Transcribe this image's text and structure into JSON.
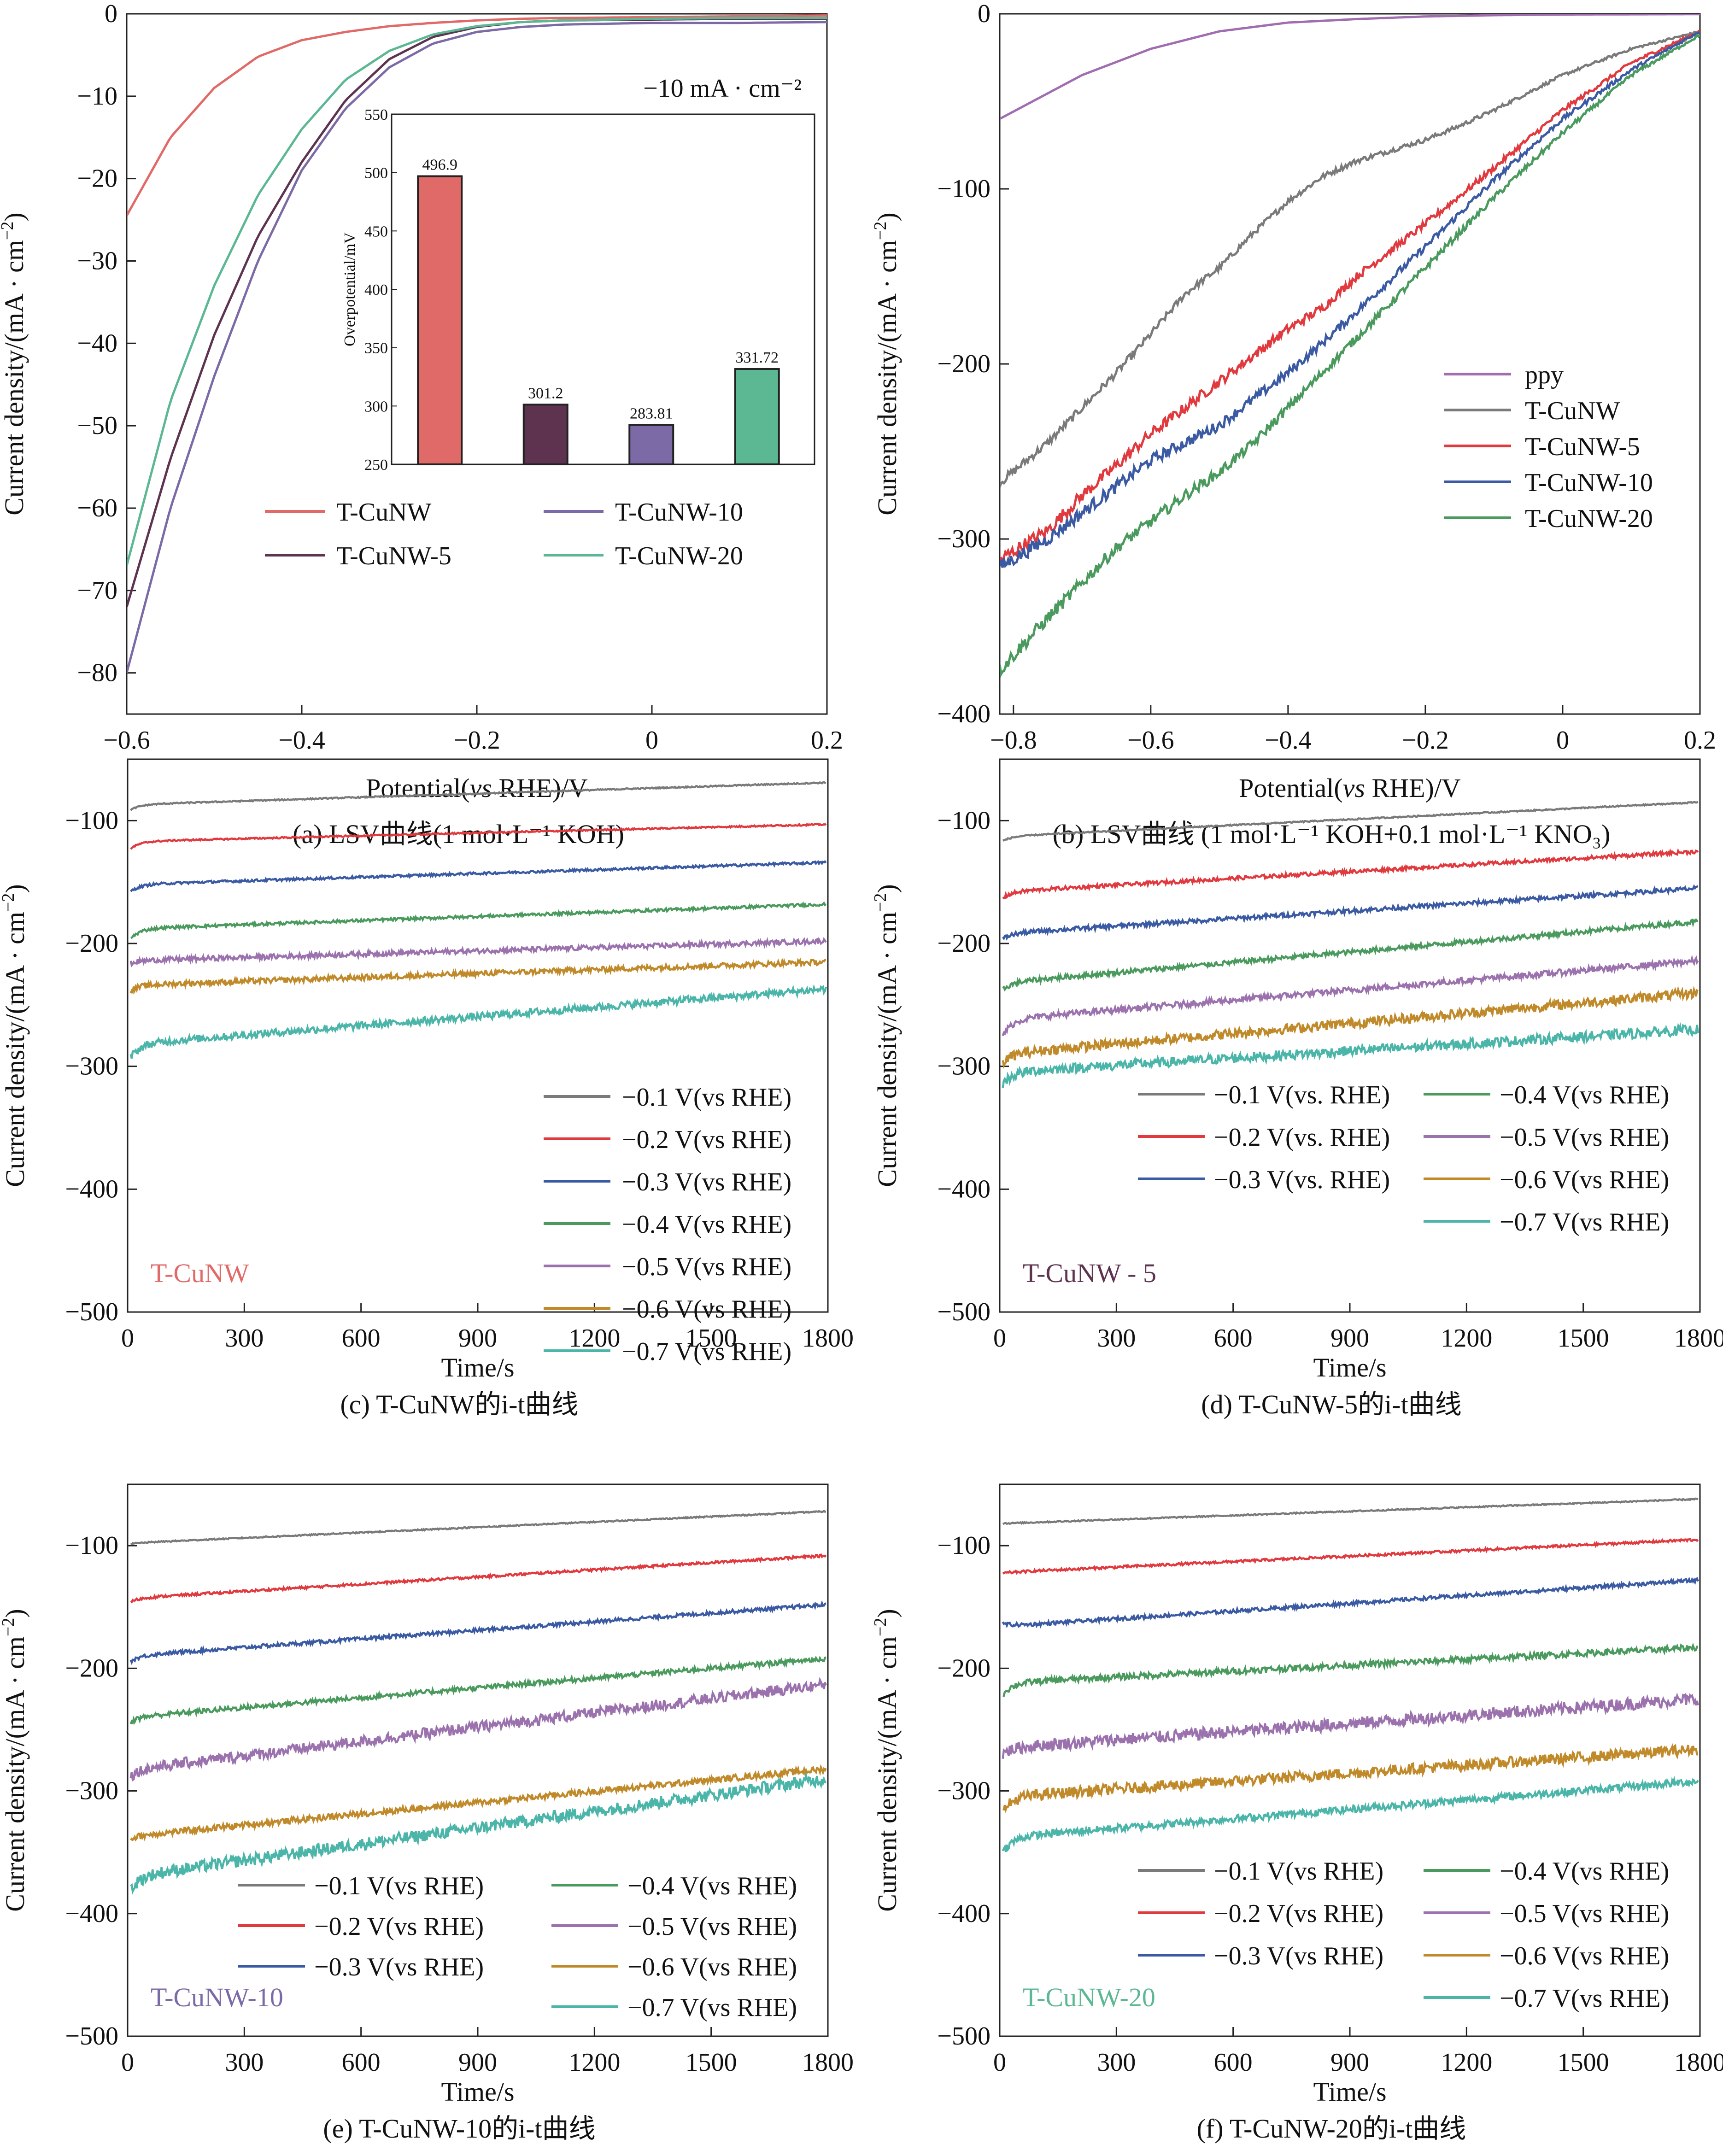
{
  "figure": {
    "colors": {
      "gray": "#7a7a7a",
      "red": "#e0393e",
      "blue": "#3a5aa3",
      "green": "#4a9a5e",
      "purple": "#9b72ae",
      "gold": "#c08a2a",
      "teal": "#4ab5a8",
      "a_red": "#e06a68",
      "a_maroon": "#5e3350",
      "a_violet": "#7b6aa6",
      "a_green": "#5cb893",
      "ppy": "#a06db0"
    }
  },
  "chart_data": [
    {
      "id": "a",
      "type": "line",
      "caption": "(a) LSV曲线(1 mol·L⁻¹ KOH)",
      "xlabel": "Potential(vs RHE)/V",
      "ylabel": "Current density/(mA · cm⁻²)",
      "xlim": [
        -0.6,
        0.2
      ],
      "ylim": [
        -85,
        0
      ],
      "xticks": [
        -0.6,
        -0.4,
        -0.2,
        0,
        0.2
      ],
      "xtick_labels": [
        "−0.6",
        "−0.4",
        "−0.2",
        "0",
        "0.2"
      ],
      "yticks": [
        0,
        -10,
        -20,
        -30,
        -40,
        -50,
        -60,
        -70,
        -80
      ],
      "ytick_labels": [
        "0",
        "−10",
        "−20",
        "−30",
        "−40",
        "−50",
        "−60",
        "−70",
        "−80"
      ],
      "legend_position": "bottom-right",
      "series": [
        {
          "name": "T-CuNW",
          "color": "#e06a68",
          "x": [
            -0.6,
            -0.55,
            -0.5,
            -0.45,
            -0.4,
            -0.35,
            -0.3,
            -0.25,
            -0.2,
            -0.15,
            -0.1,
            0,
            0.1,
            0.2
          ],
          "y": [
            -24.5,
            -15,
            -9,
            -5.2,
            -3.2,
            -2.2,
            -1.5,
            -1.1,
            -0.8,
            -0.6,
            -0.5,
            -0.4,
            -0.3,
            -0.2
          ]
        },
        {
          "name": "T-CuNW-10",
          "color": "#7b6aa6",
          "x": [
            -0.6,
            -0.55,
            -0.5,
            -0.45,
            -0.4,
            -0.35,
            -0.3,
            -0.25,
            -0.2,
            -0.15,
            -0.1,
            0,
            0.1,
            0.2
          ],
          "y": [
            -80,
            -60,
            -44,
            -30,
            -19,
            -11.5,
            -6.5,
            -3.6,
            -2.2,
            -1.6,
            -1.3,
            -1.1,
            -1.1,
            -1.0
          ]
        },
        {
          "name": "T-CuNW-5",
          "color": "#5e3350",
          "x": [
            -0.6,
            -0.55,
            -0.5,
            -0.45,
            -0.4,
            -0.35,
            -0.3,
            -0.25,
            -0.2,
            -0.15,
            -0.1,
            0,
            0.1,
            0.2
          ],
          "y": [
            -72,
            -54,
            -39,
            -27,
            -18,
            -10.5,
            -5.5,
            -2.8,
            -1.6,
            -1.0,
            -0.8,
            -0.7,
            -0.6,
            -0.6
          ]
        },
        {
          "name": "T-CuNW-20",
          "color": "#5cb893",
          "x": [
            -0.6,
            -0.55,
            -0.5,
            -0.45,
            -0.4,
            -0.35,
            -0.3,
            -0.25,
            -0.2,
            -0.15,
            -0.1,
            0,
            0.1,
            0.2
          ],
          "y": [
            -67,
            -47,
            -33,
            -22,
            -14,
            -8,
            -4.5,
            -2.5,
            -1.5,
            -1.0,
            -0.8,
            -0.6,
            -0.5,
            -0.5
          ]
        }
      ],
      "annotation": "−10 mA · cm⁻²",
      "inset": {
        "type": "bar",
        "ylabel": "Overpotential/mV",
        "ylim": [
          250,
          550
        ],
        "yticks": [
          250,
          300,
          350,
          400,
          450,
          500,
          550
        ],
        "categories": [
          "T-CuNW",
          "T-CuNW-5",
          "T-CuNW-10",
          "T-CuNW-20"
        ],
        "values": [
          496.9,
          301.2,
          283.81,
          331.72
        ],
        "value_labels": [
          "496.9",
          "301.2",
          "283.81",
          "331.72"
        ],
        "colors": [
          "#e06a68",
          "#5e3350",
          "#7b6aa6",
          "#5cb893"
        ]
      }
    },
    {
      "id": "b",
      "type": "line",
      "caption": "(b) LSV曲线 (1 mol·L⁻¹ KOH+0.1 mol·L⁻¹ KNO₃)",
      "xlabel": "Potential(vs RHE)/V",
      "ylabel": "Current density/(mA · cm⁻²)",
      "xlim": [
        -0.82,
        0.2
      ],
      "ylim": [
        -400,
        0
      ],
      "xticks": [
        -0.8,
        -0.6,
        -0.4,
        -0.2,
        0,
        0.2
      ],
      "xtick_labels": [
        "−0.8",
        "−0.6",
        "−0.4",
        "−0.2",
        "0",
        "0.2"
      ],
      "yticks": [
        0,
        -100,
        -200,
        -300,
        -400
      ],
      "ytick_labels": [
        "0",
        "−100",
        "−200",
        "−300",
        "−400"
      ],
      "legend_position": "right",
      "series": [
        {
          "name": "ppy",
          "color": "#a06db0",
          "x": [
            -0.82,
            -0.7,
            -0.6,
            -0.5,
            -0.4,
            -0.3,
            -0.2,
            -0.1,
            0,
            0.2
          ],
          "y": [
            -60,
            -35,
            -20,
            -10,
            -5,
            -3,
            -1.5,
            -0.8,
            -0.4,
            -0.2
          ],
          "noise": 0
        },
        {
          "name": "T-CuNW",
          "color": "#7a7a7a",
          "x": [
            -0.82,
            -0.75,
            -0.7,
            -0.65,
            -0.6,
            -0.55,
            -0.5,
            -0.45,
            -0.4,
            -0.35,
            -0.3,
            -0.25,
            -0.2,
            -0.15,
            -0.1,
            -0.05,
            0,
            0.1,
            0.2
          ],
          "y": [
            -268,
            -245,
            -225,
            -205,
            -183,
            -160,
            -145,
            -125,
            -107,
            -93,
            -84,
            -78,
            -72,
            -64,
            -55,
            -45,
            -35,
            -20,
            -10
          ],
          "noise": 2.5
        },
        {
          "name": "T-CuNW-5",
          "color": "#e0393e",
          "x": [
            -0.82,
            -0.75,
            -0.7,
            -0.65,
            -0.6,
            -0.55,
            -0.5,
            -0.45,
            -0.4,
            -0.35,
            -0.3,
            -0.2,
            -0.1,
            0,
            0.1,
            0.2
          ],
          "y": [
            -312,
            -295,
            -275,
            -258,
            -240,
            -225,
            -210,
            -195,
            -180,
            -168,
            -150,
            -120,
            -88,
            -55,
            -28,
            -10
          ],
          "noise": 4
        },
        {
          "name": "T-CuNW-10",
          "color": "#3a5aa3",
          "x": [
            -0.82,
            -0.75,
            -0.7,
            -0.65,
            -0.6,
            -0.55,
            -0.5,
            -0.45,
            -0.4,
            -0.35,
            -0.3,
            -0.2,
            -0.1,
            0,
            0.1,
            0.2
          ],
          "y": [
            -316,
            -300,
            -285,
            -270,
            -255,
            -245,
            -235,
            -220,
            -205,
            -188,
            -170,
            -133,
            -95,
            -60,
            -32,
            -10
          ],
          "noise": 4
        },
        {
          "name": "T-CuNW-20",
          "color": "#4a9a5e",
          "x": [
            -0.82,
            -0.75,
            -0.7,
            -0.65,
            -0.6,
            -0.55,
            -0.5,
            -0.45,
            -0.4,
            -0.35,
            -0.3,
            -0.2,
            -0.1,
            0,
            0.1,
            0.2
          ],
          "y": [
            -375,
            -345,
            -325,
            -305,
            -290,
            -275,
            -262,
            -245,
            -225,
            -205,
            -185,
            -145,
            -105,
            -68,
            -35,
            -12
          ],
          "noise": 4
        }
      ]
    },
    {
      "id": "c",
      "type": "line",
      "caption": "(c) T-CuNW的i-t曲线",
      "sample_label": "T-CuNW",
      "sample_color": "#e06a68",
      "xlabel": "Time/s",
      "ylabel": "Current density/(mA · cm⁻²)",
      "xlim": [
        0,
        1800
      ],
      "ylim": [
        -500,
        -50
      ],
      "xticks": [
        0,
        300,
        600,
        900,
        1200,
        1500,
        1800
      ],
      "yticks": [
        -100,
        -200,
        -300,
        -400,
        -500
      ],
      "ytick_labels": [
        "−100",
        "−200",
        "−300",
        "−400",
        "−500"
      ],
      "legend_position": "bottom-right",
      "legend_columns": 1,
      "series": [
        {
          "name": "−0.1 V(vs RHE)",
          "color": "#7a7a7a",
          "start": -93,
          "y0": -87,
          "y_end": -69,
          "noise": 0.5
        },
        {
          "name": "−0.2 V(vs RHE)",
          "color": "#e0393e",
          "start": -125,
          "y0": -117,
          "y_end": -103,
          "noise": 0.6
        },
        {
          "name": "−0.3 V(vs RHE)",
          "color": "#3a5aa3",
          "start": -160,
          "y0": -152,
          "y_end": -134,
          "noise": 1
        },
        {
          "name": "−0.4 V(vs RHE)",
          "color": "#4a9a5e",
          "start": -199,
          "y0": -188,
          "y_end": -168,
          "noise": 1.2
        },
        {
          "name": "−0.5 V(vs RHE)",
          "color": "#9b72ae",
          "start": -217,
          "y0": -214,
          "y_end": -198,
          "noise": 2
        },
        {
          "name": "−0.6 V(vs RHE)",
          "color": "#c08a2a",
          "start": -240,
          "y0": -234,
          "y_end": -215,
          "noise": 2.2
        },
        {
          "name": "−0.7 V(vs RHE)",
          "color": "#4ab5a8",
          "start": -297,
          "y0": -282,
          "y_end": -237,
          "noise": 3
        }
      ]
    },
    {
      "id": "d",
      "type": "line",
      "caption": "(d) T-CuNW-5的i-t曲线",
      "sample_label": "T-CuNW - 5",
      "sample_color": "#5e3350",
      "xlabel": "Time/s",
      "ylabel": "Current density/(mA · cm⁻²)",
      "xlim": [
        0,
        1800
      ],
      "ylim": [
        -500,
        -50
      ],
      "xticks": [
        0,
        300,
        600,
        900,
        1200,
        1500,
        1800
      ],
      "yticks": [
        -100,
        -200,
        -300,
        -400,
        -500
      ],
      "ytick_labels": [
        "−100",
        "−200",
        "−300",
        "−400",
        "−500"
      ],
      "legend_position": "bottom-right",
      "legend_columns": 2,
      "series": [
        {
          "name": "−0.1 V(vs. RHE)",
          "color": "#7a7a7a",
          "start": -118,
          "y0": -113,
          "y_end": -85,
          "noise": 0.5
        },
        {
          "name": "−0.2 V(vs. RHE)",
          "color": "#e0393e",
          "start": -165,
          "y0": -158,
          "y_end": -125,
          "noise": 1.5
        },
        {
          "name": "−0.3 V(vs. RHE)",
          "color": "#3a5aa3",
          "start": -198,
          "y0": -192,
          "y_end": -155,
          "noise": 1.8
        },
        {
          "name": "−0.4 V(vs RHE)",
          "color": "#4a9a5e",
          "start": -240,
          "y0": -232,
          "y_end": -182,
          "noise": 2
        },
        {
          "name": "−0.5 V(vs RHE)",
          "color": "#9b72ae",
          "start": -280,
          "y0": -262,
          "y_end": -214,
          "noise": 2.5
        },
        {
          "name": "−0.6 V(vs RHE)",
          "color": "#c08a2a",
          "start": -300,
          "y0": -290,
          "y_end": -240,
          "noise": 4
        },
        {
          "name": "−0.7 V(vs RHE)",
          "color": "#4ab5a8",
          "start": -318,
          "y0": -305,
          "y_end": -270,
          "noise": 4
        }
      ]
    },
    {
      "id": "e",
      "type": "line",
      "caption": "(e) T-CuNW-10的i-t曲线",
      "sample_label": "T-CuNW-10",
      "sample_color": "#7b6aa6",
      "xlabel": "Time/s",
      "ylabel": "Current density/(mA · cm⁻²)",
      "xlim": [
        0,
        1800
      ],
      "ylim": [
        -500,
        -50
      ],
      "xticks": [
        0,
        300,
        600,
        900,
        1200,
        1500,
        1800
      ],
      "yticks": [
        -100,
        -200,
        -300,
        -400,
        -500
      ],
      "ytick_labels": [
        "−100",
        "−200",
        "−300",
        "−400",
        "−500"
      ],
      "legend_position": "bottom-right",
      "legend_columns": 2,
      "series": [
        {
          "name": "−0.1 V(vs RHE)",
          "color": "#7a7a7a",
          "start": -99,
          "y0": -98,
          "y_end": -72,
          "noise": 0.5
        },
        {
          "name": "−0.2 V(vs RHE)",
          "color": "#e0393e",
          "start": -147,
          "y0": -143,
          "y_end": -108,
          "noise": 1
        },
        {
          "name": "−0.3 V(vs RHE)",
          "color": "#3a5aa3",
          "start": -196,
          "y0": -190,
          "y_end": -148,
          "noise": 1.5
        },
        {
          "name": "−0.4 V(vs RHE)",
          "color": "#4a9a5e",
          "start": -245,
          "y0": -240,
          "y_end": -192,
          "noise": 2
        },
        {
          "name": "−0.5 V(vs RHE)",
          "color": "#9b72ae",
          "start": -290,
          "y0": -283,
          "y_end": -213,
          "noise": 4.5
        },
        {
          "name": "−0.6 V(vs RHE)",
          "color": "#c08a2a",
          "start": -340,
          "y0": -337,
          "y_end": -282,
          "noise": 2.5
        },
        {
          "name": "−0.7 V(vs RHE)",
          "color": "#4ab5a8",
          "start": -385,
          "y0": -370,
          "y_end": -290,
          "noise": 5
        }
      ]
    },
    {
      "id": "f",
      "type": "line",
      "caption": "(f) T-CuNW-20的i-t曲线",
      "sample_label": "T-CuNW-20",
      "sample_color": "#5cb893",
      "xlabel": "Time/s",
      "ylabel": "Current density/(mA · cm⁻²)",
      "xlim": [
        0,
        1800
      ],
      "ylim": [
        -500,
        -50
      ],
      "xticks": [
        0,
        300,
        600,
        900,
        1200,
        1500,
        1800
      ],
      "yticks": [
        -100,
        -200,
        -300,
        -400,
        -500
      ],
      "ytick_labels": [
        "−100",
        "−200",
        "−300",
        "−400",
        "−500"
      ],
      "legend_position": "bottom-right",
      "legend_columns": 2,
      "series": [
        {
          "name": "−0.1 V(vs RHE)",
          "color": "#7a7a7a",
          "start": -82,
          "y0": -82,
          "y_end": -62,
          "noise": 0.5
        },
        {
          "name": "−0.2 V(vs RHE)",
          "color": "#e0393e",
          "start": -123,
          "y0": -122,
          "y_end": -95,
          "noise": 1
        },
        {
          "name": "−0.3 V(vs RHE)",
          "color": "#3a5aa3",
          "start": -163,
          "y0": -166,
          "y_end": -128,
          "noise": 1.5
        },
        {
          "name": "−0.4 V(vs RHE)",
          "color": "#4a9a5e",
          "start": -225,
          "y0": -212,
          "y_end": -183,
          "noise": 2.5
        },
        {
          "name": "−0.5 V(vs RHE)",
          "color": "#9b72ae",
          "start": -272,
          "y0": -265,
          "y_end": -225,
          "noise": 5
        },
        {
          "name": "−0.6 V(vs RHE)",
          "color": "#c08a2a",
          "start": -322,
          "y0": -305,
          "y_end": -266,
          "noise": 4.5
        },
        {
          "name": "−0.7 V(vs RHE)",
          "color": "#4ab5a8",
          "start": -355,
          "y0": -338,
          "y_end": -292,
          "noise": 3
        }
      ]
    }
  ]
}
